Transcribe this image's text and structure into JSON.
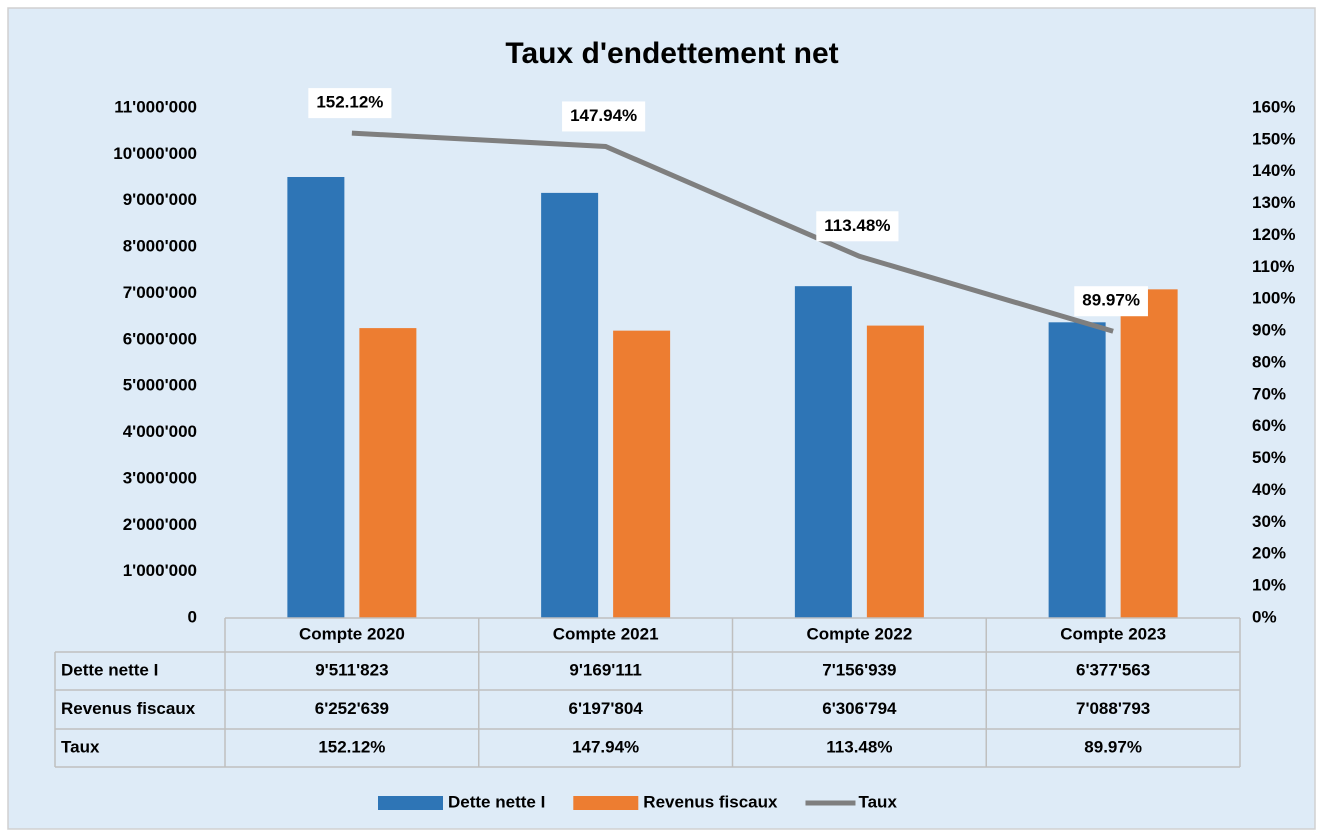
{
  "chart_data": {
    "type": "bar",
    "title": "Taux d'endettement net",
    "categories": [
      "Compte 2020",
      "Compte 2021",
      "Compte 2022",
      "Compte 2023"
    ],
    "series": [
      {
        "name": "Dette nette I",
        "type": "bar",
        "color": "#2e75b6",
        "values": [
          9511823,
          9169111,
          7156939,
          6377563
        ],
        "value_labels": [
          "9'511'823",
          "9'169'111",
          "7'156'939",
          "6'377'563"
        ]
      },
      {
        "name": "Revenus fiscaux",
        "type": "bar",
        "color": "#ed7d31",
        "values": [
          6252639,
          6197804,
          6306794,
          7088793
        ],
        "value_labels": [
          "6'252'639",
          "6'197'804",
          "6'306'794",
          "7'088'793"
        ]
      },
      {
        "name": "Taux",
        "type": "line",
        "axis": "y2",
        "color": "#7f7f7f",
        "values": [
          152.12,
          147.94,
          113.48,
          89.97
        ],
        "value_labels": [
          "152.12%",
          "147.94%",
          "113.48%",
          "89.97%"
        ]
      }
    ],
    "ylim": [
      0,
      11000000
    ],
    "yticks": [
      0,
      {
        "value": 1000000,
        "label": "1'000'000"
      },
      {
        "value": 2000000,
        "label": "2'000'000"
      },
      {
        "value": 3000000,
        "label": "3'000'000"
      },
      {
        "value": 4000000,
        "label": "4'000'000"
      },
      {
        "value": 5000000,
        "label": "5'000'000"
      },
      {
        "value": 6000000,
        "label": "6'000'000"
      },
      {
        "value": 7000000,
        "label": "7'000'000"
      },
      {
        "value": 8000000,
        "label": "8'000'000"
      },
      {
        "value": 9000000,
        "label": "9'000'000"
      },
      {
        "value": 10000000,
        "label": "10'000'000"
      },
      {
        "value": 11000000,
        "label": "11'000'000"
      }
    ],
    "y2lim": [
      0,
      160
    ],
    "y2ticks": [
      {
        "value": 0,
        "label": "0%"
      },
      {
        "value": 10,
        "label": "10%"
      },
      {
        "value": 20,
        "label": "20%"
      },
      {
        "value": 30,
        "label": "30%"
      },
      {
        "value": 40,
        "label": "40%"
      },
      {
        "value": 50,
        "label": "50%"
      },
      {
        "value": 60,
        "label": "60%"
      },
      {
        "value": 70,
        "label": "70%"
      },
      {
        "value": 80,
        "label": "80%"
      },
      {
        "value": 90,
        "label": "90%"
      },
      {
        "value": 100,
        "label": "100%"
      },
      {
        "value": 110,
        "label": "110%"
      },
      {
        "value": 120,
        "label": "120%"
      },
      {
        "value": 130,
        "label": "130%"
      },
      {
        "value": 140,
        "label": "140%"
      },
      {
        "value": 150,
        "label": "150%"
      },
      {
        "value": 160,
        "label": "160%"
      }
    ],
    "grid": false,
    "data_table": true,
    "legend": "bottom"
  }
}
